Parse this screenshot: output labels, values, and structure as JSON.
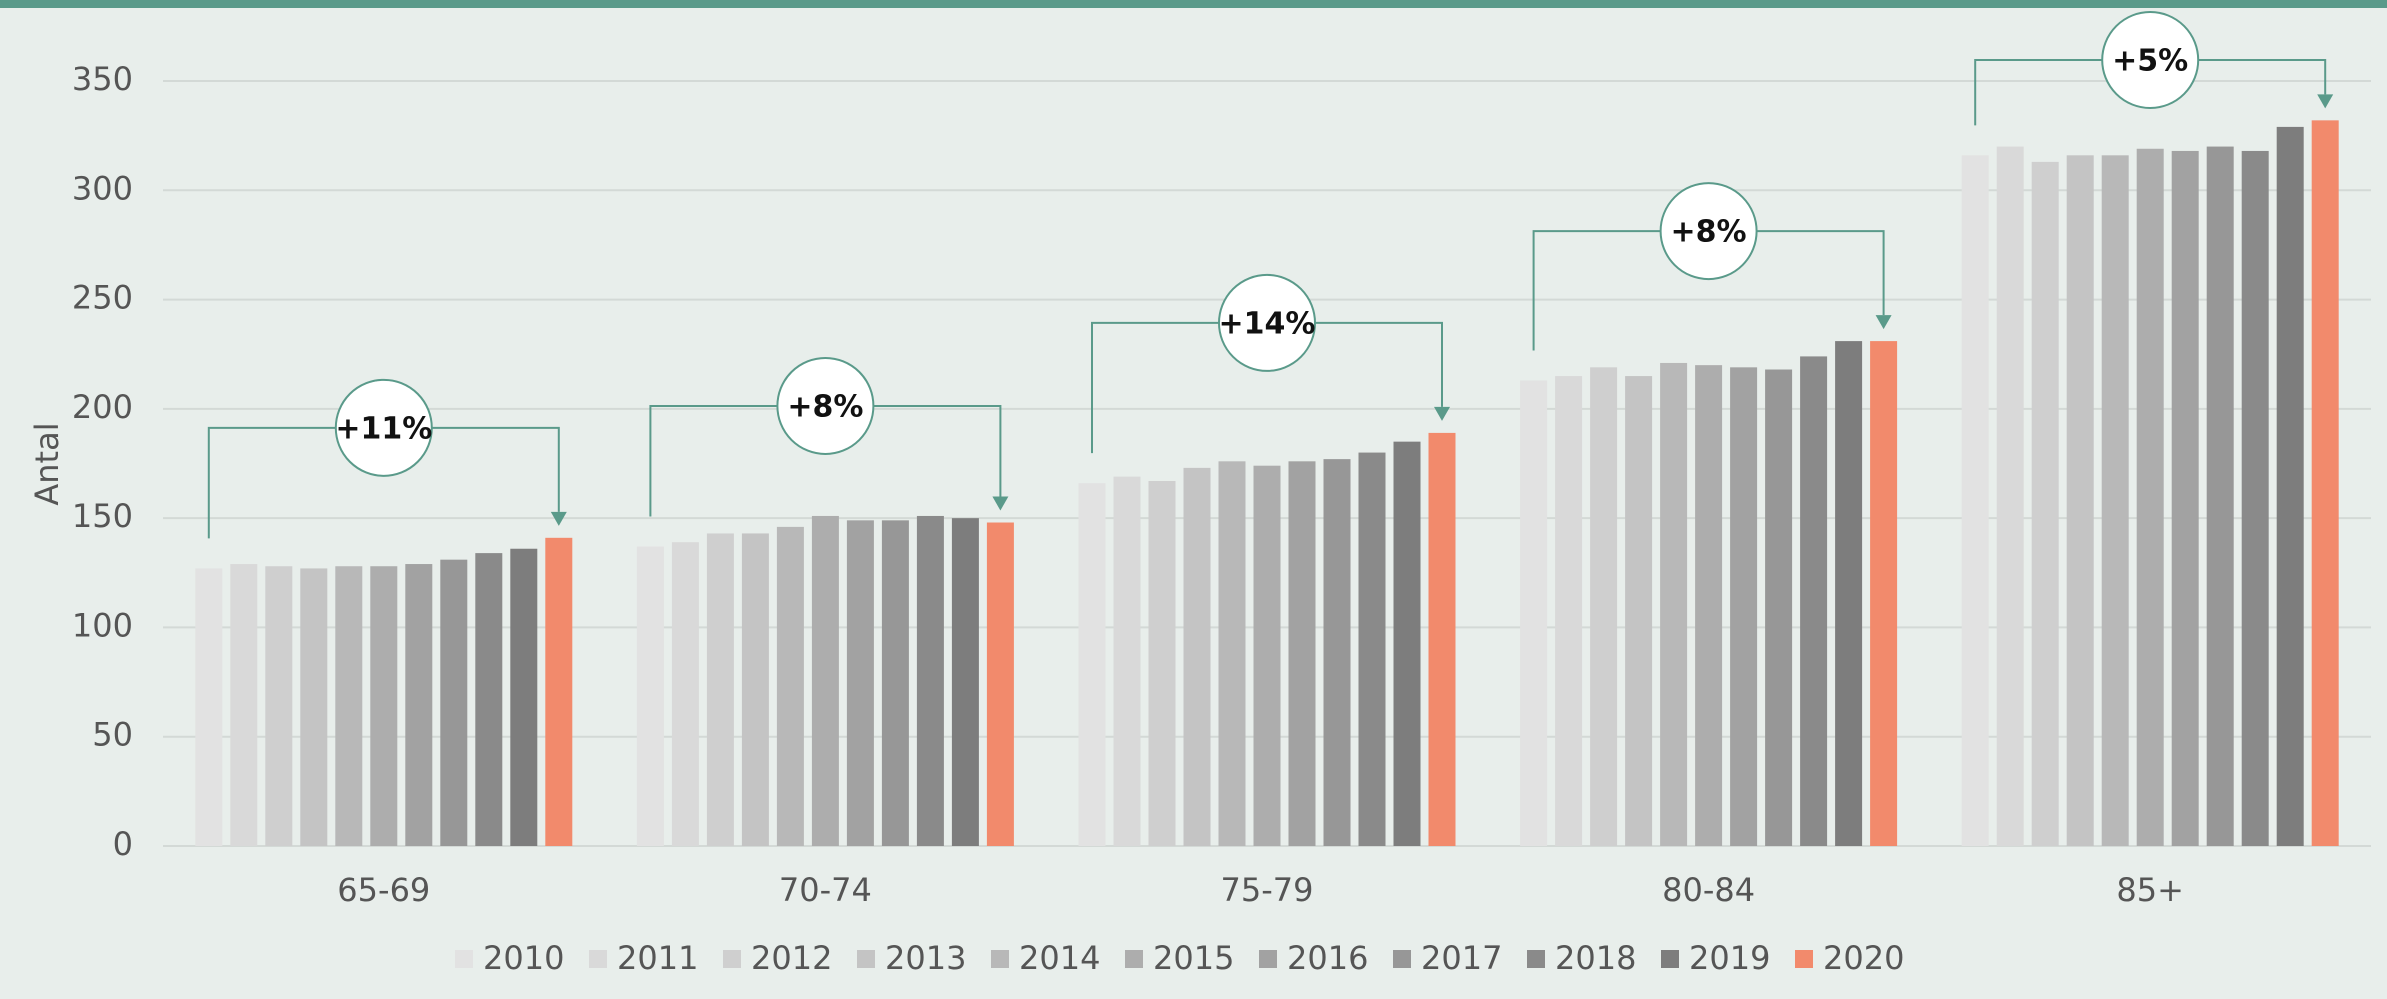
{
  "chart_data": {
    "type": "bar",
    "y_label": "Antal",
    "categories": [
      "65-69",
      "70-74",
      "75-79",
      "80-84",
      "85+"
    ],
    "series": [
      {
        "name": "2010",
        "color": "#e2e2e2",
        "values": [
          127,
          137,
          166,
          213,
          316
        ]
      },
      {
        "name": "2011",
        "color": "#d9d9d9",
        "values": [
          129,
          139,
          169,
          215,
          320
        ]
      },
      {
        "name": "2012",
        "color": "#cfcfcf",
        "values": [
          128,
          143,
          167,
          219,
          313
        ]
      },
      {
        "name": "2013",
        "color": "#c4c4c4",
        "values": [
          127,
          143,
          173,
          215,
          316
        ]
      },
      {
        "name": "2014",
        "color": "#b8b8b8",
        "values": [
          128,
          146,
          176,
          221,
          316
        ]
      },
      {
        "name": "2015",
        "color": "#adadad",
        "values": [
          128,
          151,
          174,
          220,
          319
        ]
      },
      {
        "name": "2016",
        "color": "#a2a2a2",
        "values": [
          129,
          149,
          176,
          219,
          318
        ]
      },
      {
        "name": "2017",
        "color": "#979797",
        "values": [
          131,
          149,
          177,
          218,
          320
        ]
      },
      {
        "name": "2018",
        "color": "#8a8a8a",
        "values": [
          134,
          151,
          180,
          224,
          318
        ]
      },
      {
        "name": "2019",
        "color": "#7d7d7d",
        "values": [
          136,
          150,
          185,
          231,
          329
        ]
      },
      {
        "name": "2020",
        "color": "#f28a6c",
        "values": [
          141,
          148,
          189,
          231,
          332
        ]
      }
    ],
    "annotations": [
      "+11%",
      "+8%",
      "+14%",
      "+8%",
      "+5%"
    ],
    "ylim": [
      0,
      350
    ],
    "yticks": [
      0,
      50,
      100,
      150,
      200,
      250,
      300,
      350
    ],
    "grid": true
  }
}
